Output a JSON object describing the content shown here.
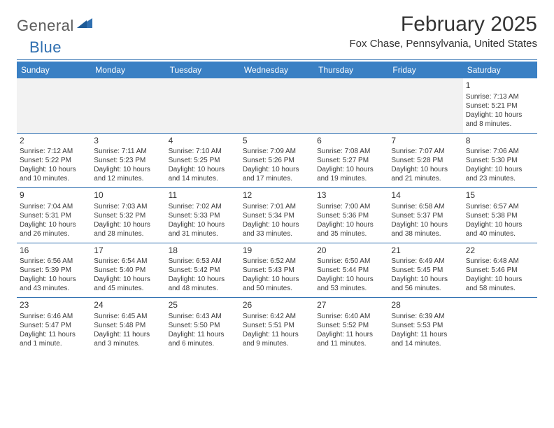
{
  "brand": {
    "part1": "General",
    "part2": "Blue"
  },
  "title": "February 2025",
  "location": "Fox Chase, Pennsylvania, United States",
  "colors": {
    "header_bg": "#3a80c4",
    "header_text": "#ffffff",
    "rule": "#2f6fb0",
    "logo_gray": "#5b5b5b",
    "logo_blue": "#2f6fb0",
    "body_text": "#333333",
    "empty_bg": "#f2f2f2",
    "page_bg": "#ffffff"
  },
  "day_headers": [
    "Sunday",
    "Monday",
    "Tuesday",
    "Wednesday",
    "Thursday",
    "Friday",
    "Saturday"
  ],
  "labels": {
    "sunrise": "Sunrise:",
    "sunset": "Sunset:",
    "daylight": "Daylight:"
  },
  "weeks": [
    [
      null,
      null,
      null,
      null,
      null,
      null,
      {
        "n": "1",
        "sunrise": "7:13 AM",
        "sunset": "5:21 PM",
        "daylight": "10 hours and 8 minutes."
      }
    ],
    [
      {
        "n": "2",
        "sunrise": "7:12 AM",
        "sunset": "5:22 PM",
        "daylight": "10 hours and 10 minutes."
      },
      {
        "n": "3",
        "sunrise": "7:11 AM",
        "sunset": "5:23 PM",
        "daylight": "10 hours and 12 minutes."
      },
      {
        "n": "4",
        "sunrise": "7:10 AM",
        "sunset": "5:25 PM",
        "daylight": "10 hours and 14 minutes."
      },
      {
        "n": "5",
        "sunrise": "7:09 AM",
        "sunset": "5:26 PM",
        "daylight": "10 hours and 17 minutes."
      },
      {
        "n": "6",
        "sunrise": "7:08 AM",
        "sunset": "5:27 PM",
        "daylight": "10 hours and 19 minutes."
      },
      {
        "n": "7",
        "sunrise": "7:07 AM",
        "sunset": "5:28 PM",
        "daylight": "10 hours and 21 minutes."
      },
      {
        "n": "8",
        "sunrise": "7:06 AM",
        "sunset": "5:30 PM",
        "daylight": "10 hours and 23 minutes."
      }
    ],
    [
      {
        "n": "9",
        "sunrise": "7:04 AM",
        "sunset": "5:31 PM",
        "daylight": "10 hours and 26 minutes."
      },
      {
        "n": "10",
        "sunrise": "7:03 AM",
        "sunset": "5:32 PM",
        "daylight": "10 hours and 28 minutes."
      },
      {
        "n": "11",
        "sunrise": "7:02 AM",
        "sunset": "5:33 PM",
        "daylight": "10 hours and 31 minutes."
      },
      {
        "n": "12",
        "sunrise": "7:01 AM",
        "sunset": "5:34 PM",
        "daylight": "10 hours and 33 minutes."
      },
      {
        "n": "13",
        "sunrise": "7:00 AM",
        "sunset": "5:36 PM",
        "daylight": "10 hours and 35 minutes."
      },
      {
        "n": "14",
        "sunrise": "6:58 AM",
        "sunset": "5:37 PM",
        "daylight": "10 hours and 38 minutes."
      },
      {
        "n": "15",
        "sunrise": "6:57 AM",
        "sunset": "5:38 PM",
        "daylight": "10 hours and 40 minutes."
      }
    ],
    [
      {
        "n": "16",
        "sunrise": "6:56 AM",
        "sunset": "5:39 PM",
        "daylight": "10 hours and 43 minutes."
      },
      {
        "n": "17",
        "sunrise": "6:54 AM",
        "sunset": "5:40 PM",
        "daylight": "10 hours and 45 minutes."
      },
      {
        "n": "18",
        "sunrise": "6:53 AM",
        "sunset": "5:42 PM",
        "daylight": "10 hours and 48 minutes."
      },
      {
        "n": "19",
        "sunrise": "6:52 AM",
        "sunset": "5:43 PM",
        "daylight": "10 hours and 50 minutes."
      },
      {
        "n": "20",
        "sunrise": "6:50 AM",
        "sunset": "5:44 PM",
        "daylight": "10 hours and 53 minutes."
      },
      {
        "n": "21",
        "sunrise": "6:49 AM",
        "sunset": "5:45 PM",
        "daylight": "10 hours and 56 minutes."
      },
      {
        "n": "22",
        "sunrise": "6:48 AM",
        "sunset": "5:46 PM",
        "daylight": "10 hours and 58 minutes."
      }
    ],
    [
      {
        "n": "23",
        "sunrise": "6:46 AM",
        "sunset": "5:47 PM",
        "daylight": "11 hours and 1 minute."
      },
      {
        "n": "24",
        "sunrise": "6:45 AM",
        "sunset": "5:48 PM",
        "daylight": "11 hours and 3 minutes."
      },
      {
        "n": "25",
        "sunrise": "6:43 AM",
        "sunset": "5:50 PM",
        "daylight": "11 hours and 6 minutes."
      },
      {
        "n": "26",
        "sunrise": "6:42 AM",
        "sunset": "5:51 PM",
        "daylight": "11 hours and 9 minutes."
      },
      {
        "n": "27",
        "sunrise": "6:40 AM",
        "sunset": "5:52 PM",
        "daylight": "11 hours and 11 minutes."
      },
      {
        "n": "28",
        "sunrise": "6:39 AM",
        "sunset": "5:53 PM",
        "daylight": "11 hours and 14 minutes."
      },
      null
    ]
  ]
}
